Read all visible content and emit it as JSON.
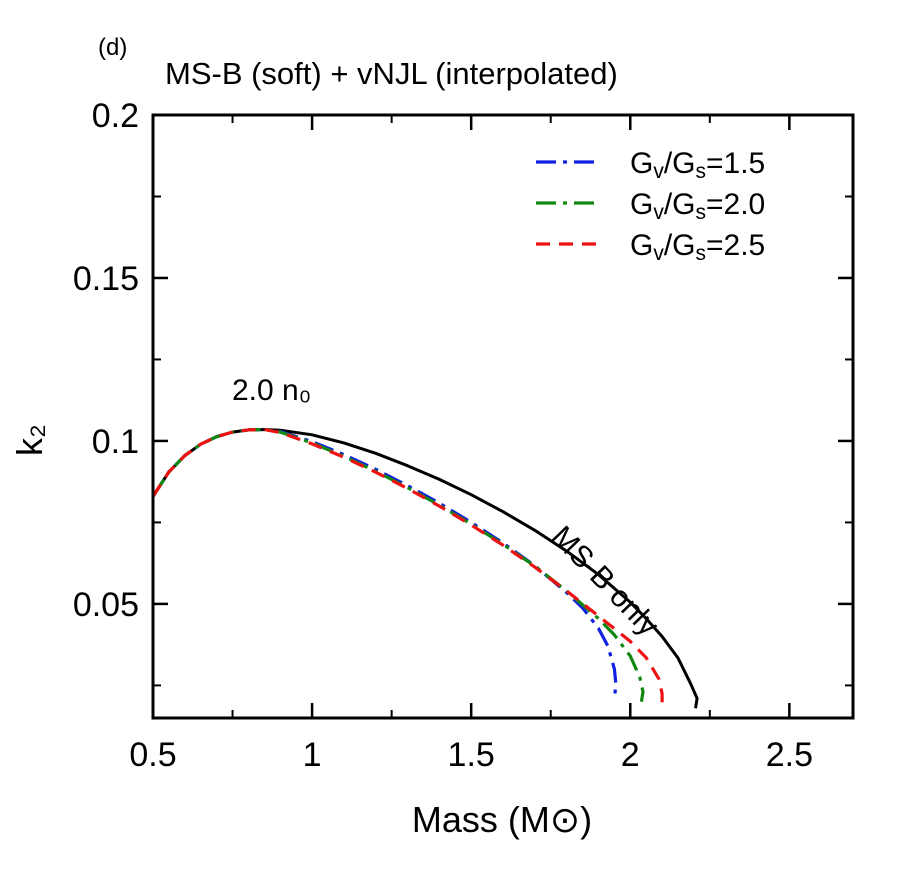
{
  "chart_data": {
    "type": "line",
    "panel_tag": "(d)",
    "title": "MS-B (soft) + vNJL (interpolated)",
    "xlabel": "Mass (M⊙)",
    "ylabel": "k₂",
    "xlim": [
      0.5,
      2.7
    ],
    "ylim": [
      0.015,
      0.2
    ],
    "xticks": [
      0.5,
      1,
      1.5,
      2,
      2.5
    ],
    "xtick_labels": [
      "0.5",
      "1",
      "1.5",
      "2",
      "2.5"
    ],
    "yticks": [
      0.05,
      0.1,
      0.15,
      0.2
    ],
    "ytick_labels": [
      "0.05",
      "0.1",
      "0.15",
      "0.2"
    ],
    "grid": false,
    "legend_position": "top-right",
    "annotations": {
      "onset": "2.0 n₀",
      "baseline": "MS-B only"
    },
    "series": [
      {
        "name": "MS-B only",
        "color": "#000000",
        "dash": "solid",
        "points": [
          [
            0.5,
            0.083
          ],
          [
            0.55,
            0.0905
          ],
          [
            0.6,
            0.0955
          ],
          [
            0.65,
            0.099
          ],
          [
            0.7,
            0.1013
          ],
          [
            0.75,
            0.1027
          ],
          [
            0.8,
            0.1034
          ],
          [
            0.85,
            0.1035
          ],
          [
            0.9,
            0.1033
          ],
          [
            1.0,
            0.1019
          ],
          [
            1.1,
            0.0994
          ],
          [
            1.2,
            0.0962
          ],
          [
            1.3,
            0.0924
          ],
          [
            1.4,
            0.0882
          ],
          [
            1.5,
            0.0835
          ],
          [
            1.6,
            0.0783
          ],
          [
            1.7,
            0.0726
          ],
          [
            1.8,
            0.0662
          ],
          [
            1.9,
            0.059
          ],
          [
            2.0,
            0.0505
          ],
          [
            2.05,
            0.0455
          ],
          [
            2.1,
            0.04
          ],
          [
            2.15,
            0.0334
          ],
          [
            2.19,
            0.0255
          ],
          [
            2.21,
            0.021
          ],
          [
            2.205,
            0.018
          ]
        ]
      },
      {
        "name": "Gv/Gs=1.5",
        "label_html": [
          "G",
          "v",
          "/G",
          "s",
          "=1.5"
        ],
        "color": "#1020e0",
        "dash": "dashdot",
        "points": [
          [
            0.5,
            0.083
          ],
          [
            0.55,
            0.0905
          ],
          [
            0.6,
            0.0955
          ],
          [
            0.65,
            0.099
          ],
          [
            0.7,
            0.1013
          ],
          [
            0.75,
            0.1027
          ],
          [
            0.8,
            0.1034
          ],
          [
            0.85,
            0.1035
          ],
          [
            0.9,
            0.1029
          ],
          [
            1.0,
            0.0998
          ],
          [
            1.1,
            0.0958
          ],
          [
            1.2,
            0.0913
          ],
          [
            1.3,
            0.0863
          ],
          [
            1.4,
            0.0809
          ],
          [
            1.5,
            0.075
          ],
          [
            1.6,
            0.0687
          ],
          [
            1.7,
            0.0617
          ],
          [
            1.8,
            0.0535
          ],
          [
            1.85,
            0.0488
          ],
          [
            1.9,
            0.0425
          ],
          [
            1.93,
            0.037
          ],
          [
            1.95,
            0.03
          ],
          [
            1.955,
            0.025
          ],
          [
            1.95,
            0.0215
          ]
        ]
      },
      {
        "name": "Gv/Gs=2.0",
        "label_html": [
          "G",
          "v",
          "/G",
          "s",
          "=2.0"
        ],
        "color": "#118811",
        "dash": "dashdot",
        "points": [
          [
            0.5,
            0.083
          ],
          [
            0.55,
            0.0905
          ],
          [
            0.6,
            0.0955
          ],
          [
            0.65,
            0.099
          ],
          [
            0.7,
            0.1013
          ],
          [
            0.75,
            0.1027
          ],
          [
            0.8,
            0.1034
          ],
          [
            0.85,
            0.1035
          ],
          [
            0.9,
            0.1027
          ],
          [
            1.0,
            0.0994
          ],
          [
            1.1,
            0.0953
          ],
          [
            1.2,
            0.0907
          ],
          [
            1.3,
            0.0857
          ],
          [
            1.4,
            0.0803
          ],
          [
            1.5,
            0.0745
          ],
          [
            1.6,
            0.0683
          ],
          [
            1.7,
            0.0616
          ],
          [
            1.8,
            0.054
          ],
          [
            1.9,
            0.0455
          ],
          [
            1.95,
            0.0405
          ],
          [
            2.0,
            0.034
          ],
          [
            2.03,
            0.0275
          ],
          [
            2.04,
            0.023
          ],
          [
            2.035,
            0.02
          ]
        ]
      },
      {
        "name": "Gv/Gs=2.5",
        "label_html": [
          "G",
          "v",
          "/G",
          "s",
          "=2.5"
        ],
        "color": "#ee1111",
        "dash": "dashed",
        "points": [
          [
            0.5,
            0.083
          ],
          [
            0.55,
            0.0905
          ],
          [
            0.6,
            0.0955
          ],
          [
            0.65,
            0.099
          ],
          [
            0.7,
            0.1013
          ],
          [
            0.75,
            0.1027
          ],
          [
            0.8,
            0.1034
          ],
          [
            0.85,
            0.1035
          ],
          [
            0.9,
            0.1026
          ],
          [
            1.0,
            0.0991
          ],
          [
            1.1,
            0.095
          ],
          [
            1.2,
            0.0904
          ],
          [
            1.3,
            0.0854
          ],
          [
            1.4,
            0.08
          ],
          [
            1.5,
            0.0742
          ],
          [
            1.6,
            0.068
          ],
          [
            1.7,
            0.0613
          ],
          [
            1.8,
            0.054
          ],
          [
            1.9,
            0.0463
          ],
          [
            2.0,
            0.0385
          ],
          [
            2.05,
            0.0335
          ],
          [
            2.09,
            0.027
          ],
          [
            2.1,
            0.0225
          ],
          [
            2.1,
            0.018
          ]
        ]
      }
    ]
  }
}
